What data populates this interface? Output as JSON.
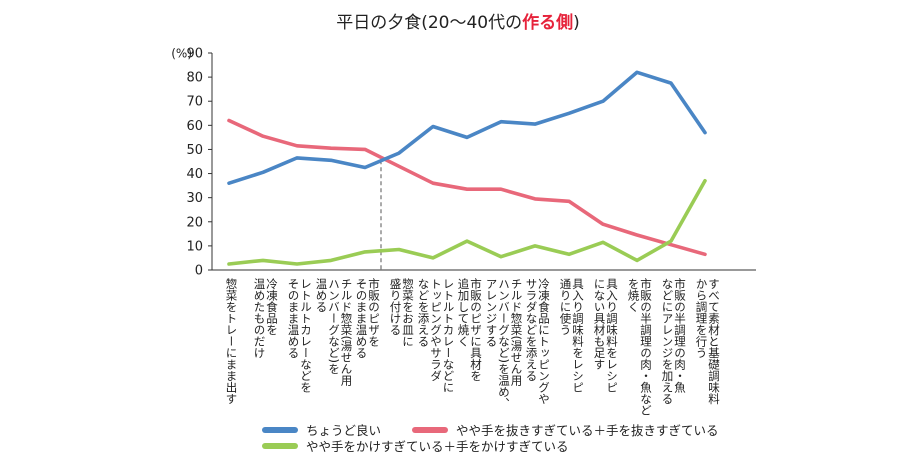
{
  "title_prefix": "平日の夕食(20～40代の",
  "title_accent": "作る側",
  "title_suffix": ")",
  "chart_data": {
    "type": "line",
    "unit_label": "(%)",
    "ylim": [
      0,
      90
    ],
    "yticks": [
      0,
      10,
      20,
      30,
      40,
      50,
      60,
      70,
      80,
      90
    ],
    "grid": false,
    "categories": [
      "惣菜をトレーにまま出す",
      "冷凍食品を\n温めたものだけ",
      "レトルトカレーなどを\nそのまま温める",
      "チルド惣菜(湯せん用\nハンバーグなど)を\n温める",
      "市販のピザを\nそのまま温める",
      "惣菜をお皿に\n盛り付ける",
      "レトルトカレーなどに\nトッピングやサラダ\nなどを添える",
      "市販のピザに具材を\n追加して焼く",
      "チルド惣菜(湯せん用\nハンバーグなど)を温め、\nアレンジする",
      "冷凍食品にトッピングや\nサラダなどを添える",
      "具入り調味料をレシピ\n通りに使う",
      "具入り調味料をレシピ\nにない具材も足す",
      "市販の半調理の肉・魚など\nを焼く",
      "市販の半調理の肉・魚\nなどにアレンジを加える",
      "すべて素材と基礎調味料\nから調理を行う"
    ],
    "series": [
      {
        "name": "ちょうど良い",
        "color": "#4a86c5",
        "values": [
          36,
          40.5,
          46.5,
          45.5,
          42.5,
          48.5,
          59.5,
          55,
          61.5,
          60.5,
          65,
          70,
          82,
          77.5,
          57
        ]
      },
      {
        "name": "やや手を抜きすぎている＋手を抜きすぎている",
        "color": "#e8687a",
        "values": [
          62,
          55.5,
          51.5,
          50.5,
          50,
          43,
          36,
          33.5,
          33.5,
          29.5,
          28.5,
          19,
          14.5,
          10.5,
          6.5
        ]
      },
      {
        "name": "やや手をかけすぎている＋手をかけすぎている",
        "color": "#9acc55",
        "values": [
          2.5,
          4,
          2.5,
          4,
          7.5,
          8.5,
          5,
          12,
          5.5,
          10,
          6.5,
          11.5,
          4,
          12,
          37
        ]
      }
    ],
    "divider_after_index": 4
  }
}
